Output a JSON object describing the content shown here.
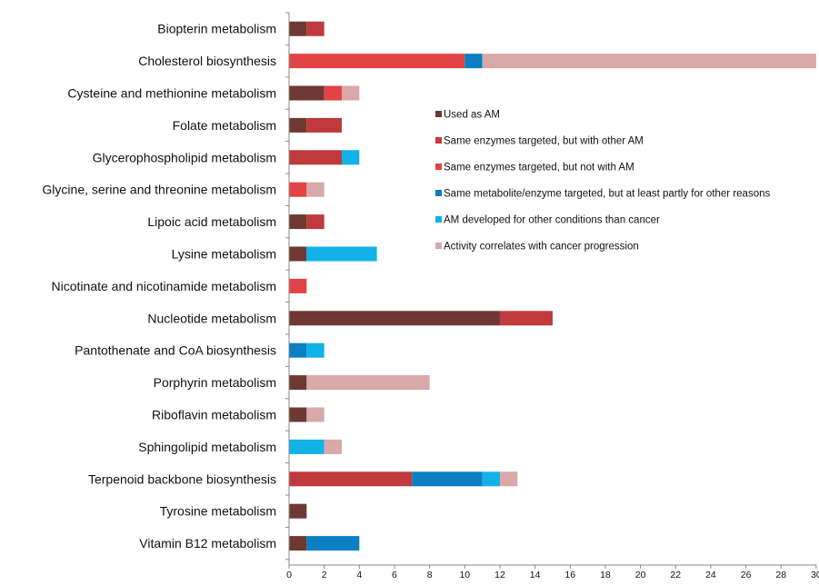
{
  "chart_data": {
    "type": "bar",
    "orientation": "horizontal",
    "stacked": true,
    "categories": [
      "Biopterin metabolism",
      "Cholesterol biosynthesis",
      "Cysteine and methionine metabolism",
      "Folate metabolism",
      "Glycerophospholipid metabolism",
      "Glycine, serine and threonine metabolism",
      "Lipoic acid metabolism",
      "Lysine metabolism",
      "Nicotinate and nicotinamide metabolism",
      "Nucleotide metabolism",
      "Pantothenate and CoA biosynthesis",
      "Porphyrin metabolism",
      "Riboflavin metabolism",
      "Sphingolipid metabolism",
      "Terpenoid backbone biosynthesis",
      "Tyrosine metabolism",
      "Vitamin B12 metabolism"
    ],
    "series": [
      {
        "name": "Used as AM",
        "color": "#6e3932",
        "values": [
          1,
          0,
          2,
          1,
          0,
          0,
          1,
          1,
          0,
          12,
          0,
          1,
          1,
          0,
          0,
          1,
          1
        ]
      },
      {
        "name": "Same enzymes targeted, but with other AM",
        "color": "#c0393c",
        "values": [
          1,
          0,
          0,
          2,
          3,
          0,
          1,
          0,
          0,
          3,
          0,
          0,
          0,
          0,
          7,
          0,
          0
        ]
      },
      {
        "name": "Same enzymes targeted, but not with AM",
        "color": "#e24445",
        "values": [
          0,
          10,
          1,
          0,
          0,
          1,
          0,
          0,
          1,
          0,
          0,
          0,
          0,
          0,
          0,
          0,
          0
        ]
      },
      {
        "name": "Same metabolite/enzyme targeted, but at least partly for other reasons",
        "color": "#0b7fc1",
        "values": [
          0,
          1,
          0,
          0,
          0,
          0,
          0,
          0,
          0,
          0,
          1,
          0,
          0,
          0,
          4,
          0,
          3
        ]
      },
      {
        "name": "AM developed for other conditions than cancer",
        "color": "#10b2e7",
        "values": [
          0,
          0,
          0,
          0,
          1,
          0,
          0,
          4,
          0,
          0,
          1,
          0,
          0,
          2,
          1,
          0,
          0
        ]
      },
      {
        "name": "Activity correlates with cancer progression",
        "color": "#d9a8a8",
        "values": [
          0,
          19,
          1,
          0,
          0,
          1,
          0,
          0,
          0,
          0,
          0,
          7,
          1,
          1,
          1,
          0,
          0
        ]
      }
    ],
    "xlim": [
      0,
      30
    ],
    "xticks": [
      "0",
      "2",
      "4",
      "6",
      "8",
      "10",
      "12",
      "14",
      "16",
      "18",
      "20",
      "22",
      "24",
      "26",
      "28",
      "30"
    ],
    "title": "",
    "xlabel": "",
    "ylabel": "",
    "grid": false,
    "legend_position": "upper-right-inside"
  }
}
